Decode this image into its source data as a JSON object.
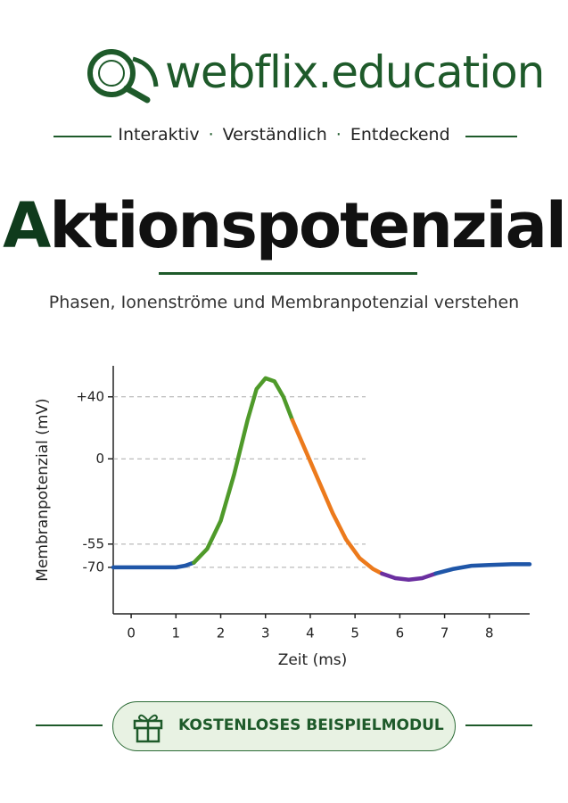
{
  "header": {
    "brand": "webflix.education",
    "tagline": [
      "Interaktiv",
      "Verständlich",
      "Entdeckend"
    ]
  },
  "title": "Aktionspotenzial",
  "subtitle": "Phasen, Ionenströme und Membranpotenzial verstehen",
  "chart_data": {
    "type": "line",
    "x_label": "Zeit (ms)",
    "y_label": "Membranpotenzial (mV)",
    "xlim": [
      -0.4,
      8.9
    ],
    "xticks": [
      0,
      1,
      2,
      3,
      4,
      5,
      6,
      7,
      8
    ],
    "ylim": [
      -100,
      60
    ],
    "yticks": [
      {
        "value": 40,
        "label": "+40"
      },
      0,
      -55,
      -70
    ],
    "grid": true,
    "series": [
      {
        "color": "#1f56a8",
        "x": [
          -0.4,
          0,
          0.5,
          1,
          1.2,
          1.4
        ],
        "values": [
          -70,
          -70,
          -70,
          -70,
          -69,
          -67
        ]
      },
      {
        "color": "#4f9a2a",
        "x": [
          1.4,
          1.7,
          2,
          2.3,
          2.6,
          2.8,
          3,
          3.2,
          3.4,
          3.6
        ],
        "values": [
          -67,
          -58,
          -40,
          -10,
          25,
          45,
          52,
          50,
          40,
          25
        ]
      },
      {
        "color": "#ec7a1c",
        "x": [
          3.6,
          3.9,
          4.2,
          4.5,
          4.8,
          5.1,
          5.4,
          5.6
        ],
        "values": [
          25,
          5,
          -15,
          -35,
          -52,
          -64,
          -71,
          -74
        ]
      },
      {
        "color": "#6b2fa0",
        "x": [
          5.6,
          5.9,
          6.2,
          6.5,
          6.8
        ],
        "values": [
          -74,
          -77,
          -78,
          -77,
          -74
        ]
      },
      {
        "color": "#1f56a8",
        "x": [
          6.8,
          7.2,
          7.6,
          8,
          8.5,
          8.9
        ],
        "values": [
          -74,
          -71,
          -69,
          -68.5,
          -68,
          -68
        ]
      }
    ]
  },
  "button": "KOSTENLOSES BEISPIELMODUL"
}
